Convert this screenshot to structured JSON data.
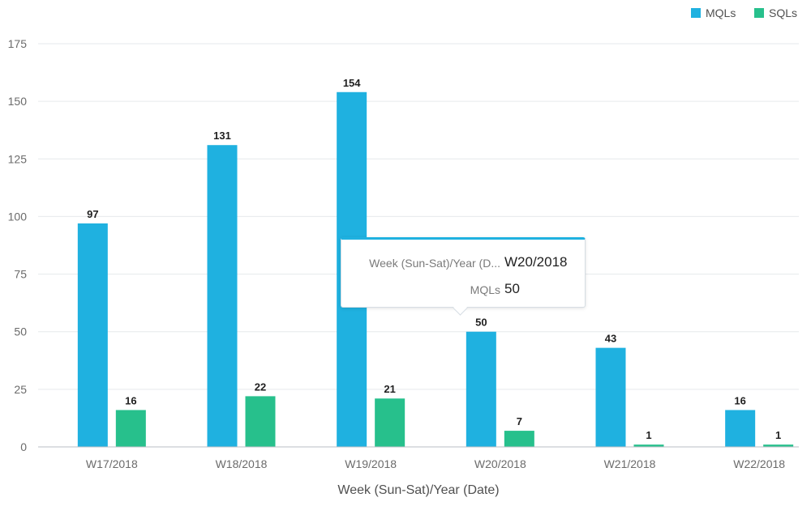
{
  "chart_data": {
    "type": "bar",
    "categories": [
      "W17/2018",
      "W18/2018",
      "W19/2018",
      "W20/2018",
      "W21/2018",
      "W22/2018"
    ],
    "series": [
      {
        "name": "MQLs",
        "values": [
          97,
          131,
          154,
          50,
          43,
          16
        ],
        "color": "#1fb1e0"
      },
      {
        "name": "SQLs",
        "values": [
          16,
          22,
          21,
          7,
          1,
          1
        ],
        "color": "#27c08c"
      }
    ],
    "title": "",
    "xlabel": "Week (Sun-Sat)/Year (Date)",
    "ylabel": "",
    "ylim": [
      0,
      175
    ],
    "yticks": [
      0,
      25,
      50,
      75,
      100,
      125,
      150,
      175
    ],
    "grid": true,
    "legend_position": "top-right",
    "data_labels": true
  },
  "tooltip": {
    "rows": [
      {
        "key": "Week (Sun-Sat)/Year (D...",
        "value": "W20/2018"
      },
      {
        "key": "MQLs",
        "value": "50"
      }
    ]
  }
}
